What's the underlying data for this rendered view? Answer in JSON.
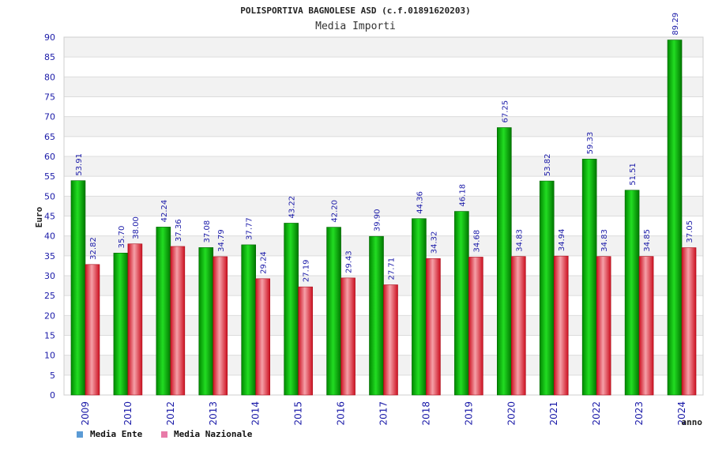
{
  "colors": {
    "ente": "#00aa00",
    "nazionale": "#e8283c",
    "ente_legend": "#5b9bd5",
    "nazionale_legend": "#e87aa8",
    "axis_text": "#1a1aa8"
  },
  "chart_data": {
    "type": "bar",
    "title": "POLISPORTIVA BAGNOLESE ASD (c.f.01891620203)",
    "subtitle": "Media Importi",
    "ylabel": "Euro",
    "xlabel": "anno",
    "ylim": [
      0,
      90
    ],
    "yticks": [
      0,
      5,
      10,
      15,
      20,
      25,
      30,
      35,
      40,
      45,
      50,
      55,
      60,
      65,
      70,
      75,
      80,
      85,
      90
    ],
    "grid": true,
    "legend_position": "bottom-left",
    "categories": [
      "2009",
      "2010",
      "2012",
      "2013",
      "2014",
      "2015",
      "2016",
      "2017",
      "2018",
      "2019",
      "2020",
      "2021",
      "2022",
      "2023",
      "2024"
    ],
    "series": [
      {
        "name": "Media Ente",
        "values": [
          53.91,
          35.7,
          42.24,
          37.08,
          37.77,
          43.22,
          42.2,
          39.9,
          44.36,
          46.18,
          67.25,
          53.82,
          59.33,
          51.51,
          89.29
        ],
        "labels": [
          "53.91",
          "35.70",
          "42.24",
          "37.08",
          "37.77",
          "43.22",
          "42.20",
          "39.90",
          "44.36",
          "46.18",
          "67.25",
          "53.82",
          "59.33",
          "51.51",
          "89.29"
        ]
      },
      {
        "name": "Media Nazionale",
        "values": [
          32.82,
          38.0,
          37.36,
          34.79,
          29.24,
          27.19,
          29.43,
          27.71,
          34.32,
          34.68,
          34.83,
          34.94,
          34.83,
          34.85,
          37.05
        ],
        "labels": [
          "32.82",
          "38.00",
          "37.36",
          "34.79",
          "29.24",
          "27.19",
          "29.43",
          "27.71",
          "34.32",
          "34.68",
          "34.83",
          "34.94",
          "34.83",
          "34.85",
          "37.05"
        ]
      }
    ]
  }
}
